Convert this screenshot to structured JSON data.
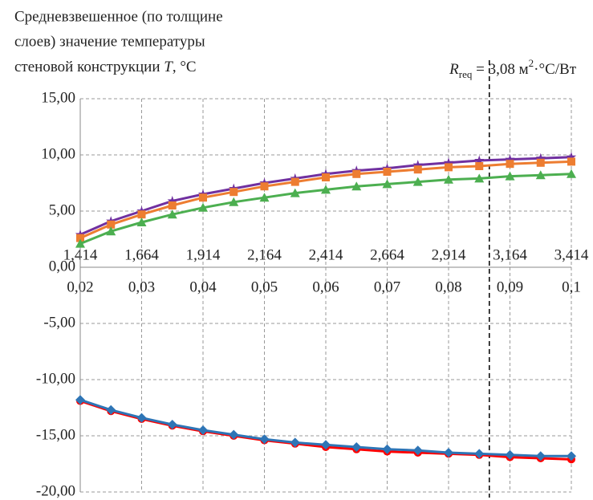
{
  "chart_data": {
    "type": "line",
    "title": [
      "Средневзвешенное (по толщине",
      "слоев) значение температуры",
      [
        "стеновой конструкции ",
        "T",
        ", °C"
      ]
    ],
    "annotation": {
      "x2": 3.08,
      "parts": [
        "R",
        "req",
        " = 3,08 м",
        "2",
        "·°C/Вт"
      ]
    },
    "x": [
      0.02,
      0.025,
      0.03,
      0.035,
      0.04,
      0.045,
      0.05,
      0.055,
      0.06,
      0.065,
      0.07,
      0.075,
      0.08,
      0.085,
      0.09,
      0.095,
      0.1
    ],
    "xlim": [
      0.02,
      0.1
    ],
    "xticks": [
      {
        "value": 0.02,
        "label": "0,02"
      },
      {
        "value": 0.03,
        "label": "0,03"
      },
      {
        "value": 0.04,
        "label": "0,04"
      },
      {
        "value": 0.05,
        "label": "0,05"
      },
      {
        "value": 0.06,
        "label": "0,06"
      },
      {
        "value": 0.07,
        "label": "0,07"
      },
      {
        "value": 0.08,
        "label": "0,08"
      },
      {
        "value": 0.09,
        "label": "0,09"
      },
      {
        "value": 0.1,
        "label": "0,1"
      }
    ],
    "x2lim": [
      1.414,
      3.414
    ],
    "x2ticks": [
      {
        "value": 1.414,
        "label": "1,414"
      },
      {
        "value": 1.664,
        "label": "1,664"
      },
      {
        "value": 1.914,
        "label": "1,914"
      },
      {
        "value": 2.164,
        "label": "2,164"
      },
      {
        "value": 2.414,
        "label": "2,414"
      },
      {
        "value": 2.664,
        "label": "2,664"
      },
      {
        "value": 2.914,
        "label": "2,914"
      },
      {
        "value": 3.164,
        "label": "3,164"
      },
      {
        "value": 3.414,
        "label": "3,414"
      }
    ],
    "ylim": [
      -20,
      15
    ],
    "yticks": [
      {
        "value": -20,
        "label": "-20,00"
      },
      {
        "value": -15,
        "label": "-15,00"
      },
      {
        "value": -10,
        "label": "-10,00"
      },
      {
        "value": -5,
        "label": "-5,00"
      },
      {
        "value": 0,
        "label": "0,00"
      },
      {
        "value": 5,
        "label": "5,00"
      },
      {
        "value": 10,
        "label": "10,00"
      },
      {
        "value": 15,
        "label": "15,00"
      }
    ],
    "grid": true,
    "series": [
      {
        "color": "#7030a0",
        "marker": "star",
        "values": [
          2.9,
          4.1,
          5.0,
          5.9,
          6.5,
          7.0,
          7.5,
          7.9,
          8.3,
          8.6,
          8.8,
          9.1,
          9.3,
          9.5,
          9.6,
          9.7,
          9.8
        ]
      },
      {
        "color": "#ed7d31",
        "marker": "square",
        "values": [
          2.6,
          3.8,
          4.7,
          5.5,
          6.2,
          6.7,
          7.2,
          7.6,
          8.0,
          8.3,
          8.5,
          8.7,
          8.9,
          9.0,
          9.2,
          9.3,
          9.4
        ]
      },
      {
        "color": "#4caf50",
        "marker": "triangle",
        "values": [
          2.1,
          3.2,
          4.0,
          4.7,
          5.3,
          5.8,
          6.2,
          6.6,
          6.9,
          7.2,
          7.4,
          7.6,
          7.8,
          7.9,
          8.1,
          8.2,
          8.3
        ]
      },
      {
        "color": "#ff0000",
        "marker": "circle",
        "values": [
          -11.9,
          -12.8,
          -13.5,
          -14.1,
          -14.6,
          -15.0,
          -15.4,
          -15.7,
          -16.0,
          -16.2,
          -16.4,
          -16.5,
          -16.6,
          -16.7,
          -16.9,
          -17.0,
          -17.1
        ]
      },
      {
        "color": "#2e75b6",
        "marker": "diamond",
        "values": [
          -11.8,
          -12.7,
          -13.4,
          -14.0,
          -14.5,
          -14.9,
          -15.3,
          -15.6,
          -15.8,
          -16.0,
          -16.2,
          -16.3,
          -16.5,
          -16.6,
          -16.7,
          -16.8,
          -16.8
        ]
      }
    ]
  }
}
